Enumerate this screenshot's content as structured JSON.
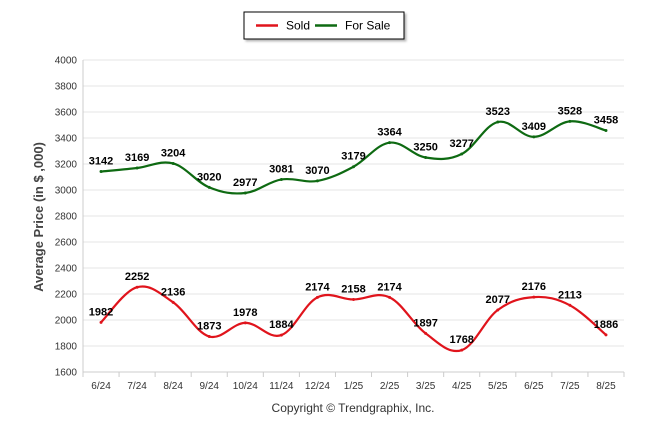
{
  "chart_data": {
    "type": "line",
    "categories": [
      "6/24",
      "7/24",
      "8/24",
      "9/24",
      "10/24",
      "11/24",
      "12/24",
      "1/25",
      "2/25",
      "3/25",
      "4/25",
      "5/25",
      "6/25",
      "7/25",
      "8/25"
    ],
    "series": [
      {
        "name": "Sold",
        "color": "#e0141c",
        "values": [
          1982,
          2252,
          2136,
          1873,
          1978,
          1884,
          2174,
          2158,
          2174,
          1897,
          1768,
          2077,
          2176,
          2113,
          1886
        ]
      },
      {
        "name": "For Sale",
        "color": "#0e6a12",
        "values": [
          3142,
          3169,
          3204,
          3020,
          2977,
          3081,
          3070,
          3179,
          3364,
          3250,
          3277,
          3523,
          3409,
          3528,
          3458
        ]
      }
    ],
    "ylabel": "Average Price (in $ ,000)",
    "xlabel": "",
    "ylim": [
      1600,
      4000
    ],
    "yticks": [
      "1600",
      "1800",
      "2000",
      "2200",
      "2400",
      "2600",
      "2800",
      "3000",
      "3200",
      "3400",
      "3600",
      "3800",
      "4000"
    ],
    "grid": true,
    "legend_position": "top-center",
    "credit": "Copyright © Trendgraphix, Inc."
  }
}
